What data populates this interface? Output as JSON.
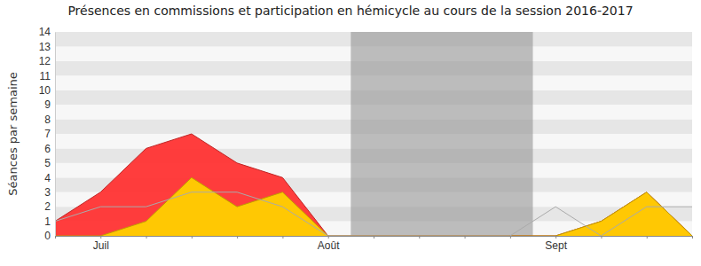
{
  "chart_data": {
    "type": "area",
    "title": "Présences en commissions et participation en hémicycle au cours de la session 2016-2017",
    "y_label": "Séances par semaine",
    "categories": [
      null,
      "Juil",
      null,
      null,
      null,
      null,
      "Août",
      null,
      null,
      null,
      null,
      "Sept",
      null,
      null,
      null
    ],
    "series": [
      {
        "type": "area",
        "color": "#ff3333",
        "values": [
          1,
          3,
          6,
          7,
          5,
          4,
          0,
          0,
          0,
          0,
          0,
          0,
          1,
          3,
          0
        ]
      },
      {
        "type": "area",
        "color": "#ffd000",
        "values": [
          0,
          0,
          1,
          4,
          2,
          3,
          0,
          0,
          0,
          0,
          0,
          0,
          1,
          3,
          0
        ]
      },
      {
        "type": "line",
        "color": "#aaaaaa",
        "values": [
          1,
          2,
          2,
          3,
          3,
          2,
          0,
          0,
          0,
          0,
          0,
          2,
          0,
          2,
          2
        ]
      }
    ],
    "shaded_band": {
      "from": 6.5,
      "to": 10.5
    },
    "ylim": [
      0,
      14
    ],
    "yticks": [
      0,
      1,
      2,
      3,
      4,
      5,
      6,
      7,
      8,
      9,
      10,
      11,
      12,
      13,
      14
    ],
    "grid": true
  }
}
